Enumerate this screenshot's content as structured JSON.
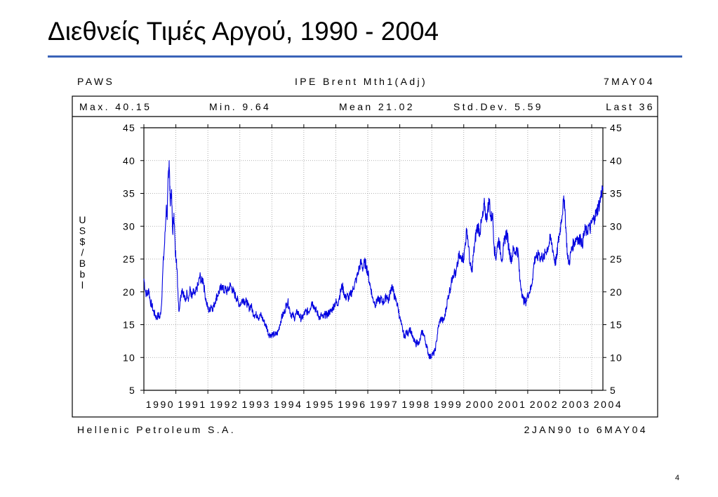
{
  "slide": {
    "title": "Διεθνείς Τιμές Αργού, 1990 - 2004",
    "page_number": "4"
  },
  "header": {
    "left": "PAWS",
    "center": "IPE Brent Mth1(Adj)",
    "right": "7MAY04"
  },
  "stats": {
    "max": "Max. 40.15",
    "min": "Min. 9.64",
    "mean": "Mean 21.02",
    "std": "Std.Dev. 5.59",
    "last": "Last 36"
  },
  "footer": {
    "left": "Hellenic Petroleum S.A.",
    "right": "2JAN90 to 6MAY04"
  },
  "colors": {
    "line": "#0000e0",
    "rule": "#3a63b8",
    "grid": "#999999"
  },
  "chart_data": {
    "type": "line",
    "title": "IPE Brent Mth1(Adj)",
    "ylabel": "US$/Bbl",
    "xlabel": "",
    "ylim": [
      5,
      45
    ],
    "xlim": [
      1990.0,
      2004.35
    ],
    "yticks": [
      5,
      10,
      15,
      20,
      25,
      30,
      35,
      40,
      45
    ],
    "xticks": [
      "1990",
      "1991",
      "1992",
      "1993",
      "1994",
      "1995",
      "1996",
      "1997",
      "1998",
      "1999",
      "2000",
      "2001",
      "2002",
      "2003",
      "2004"
    ],
    "grid": true,
    "series": [
      {
        "values": [
          [
            1990.0,
            22.0
          ],
          [
            1990.05,
            20.0
          ],
          [
            1990.1,
            19.5
          ],
          [
            1990.15,
            20.5
          ],
          [
            1990.2,
            18.5
          ],
          [
            1990.25,
            18.0
          ],
          [
            1990.3,
            17.0
          ],
          [
            1990.35,
            16.5
          ],
          [
            1990.4,
            16.0
          ],
          [
            1990.45,
            16.5
          ],
          [
            1990.5,
            16.0
          ],
          [
            1990.55,
            18.0
          ],
          [
            1990.6,
            24.0
          ],
          [
            1990.65,
            27.5
          ],
          [
            1990.7,
            33.0
          ],
          [
            1990.73,
            31.0
          ],
          [
            1990.76,
            38.0
          ],
          [
            1990.79,
            40.0
          ],
          [
            1990.82,
            34.0
          ],
          [
            1990.86,
            35.5
          ],
          [
            1990.9,
            29.0
          ],
          [
            1990.94,
            32.0
          ],
          [
            1990.98,
            26.0
          ],
          [
            1991.02,
            25.0
          ],
          [
            1991.06,
            20.5
          ],
          [
            1991.1,
            17.0
          ],
          [
            1991.15,
            19.5
          ],
          [
            1991.2,
            20.5
          ],
          [
            1991.25,
            19.5
          ],
          [
            1991.3,
            18.5
          ],
          [
            1991.35,
            20.0
          ],
          [
            1991.4,
            19.0
          ],
          [
            1991.45,
            20.5
          ],
          [
            1991.5,
            19.0
          ],
          [
            1991.55,
            20.0
          ],
          [
            1991.6,
            19.5
          ],
          [
            1991.65,
            20.5
          ],
          [
            1991.7,
            21.0
          ],
          [
            1991.75,
            22.5
          ],
          [
            1991.8,
            21.5
          ],
          [
            1991.85,
            22.0
          ],
          [
            1991.9,
            20.0
          ],
          [
            1991.95,
            18.5
          ],
          [
            1992.0,
            17.5
          ],
          [
            1992.05,
            17.0
          ],
          [
            1992.1,
            18.0
          ],
          [
            1992.15,
            17.5
          ],
          [
            1992.2,
            18.0
          ],
          [
            1992.25,
            19.0
          ],
          [
            1992.3,
            19.5
          ],
          [
            1992.35,
            20.0
          ],
          [
            1992.4,
            20.5
          ],
          [
            1992.45,
            21.0
          ],
          [
            1992.5,
            20.0
          ],
          [
            1992.55,
            20.5
          ],
          [
            1992.6,
            20.0
          ],
          [
            1992.65,
            20.5
          ],
          [
            1992.7,
            21.0
          ],
          [
            1992.75,
            20.5
          ],
          [
            1992.8,
            20.0
          ],
          [
            1992.85,
            19.5
          ],
          [
            1992.9,
            19.0
          ],
          [
            1992.95,
            18.5
          ],
          [
            1993.0,
            18.0
          ],
          [
            1993.05,
            18.5
          ],
          [
            1993.1,
            19.0
          ],
          [
            1993.15,
            18.5
          ],
          [
            1993.2,
            18.5
          ],
          [
            1993.25,
            18.0
          ],
          [
            1993.3,
            17.5
          ],
          [
            1993.35,
            18.0
          ],
          [
            1993.4,
            17.0
          ],
          [
            1993.45,
            16.5
          ],
          [
            1993.5,
            16.5
          ],
          [
            1993.55,
            16.5
          ],
          [
            1993.6,
            16.0
          ],
          [
            1993.65,
            16.5
          ],
          [
            1993.7,
            16.0
          ],
          [
            1993.75,
            15.5
          ],
          [
            1993.8,
            15.0
          ],
          [
            1993.85,
            14.5
          ],
          [
            1993.9,
            13.5
          ],
          [
            1993.95,
            13.5
          ],
          [
            1994.0,
            13.5
          ],
          [
            1994.05,
            13.5
          ],
          [
            1994.1,
            13.5
          ],
          [
            1994.15,
            13.5
          ],
          [
            1994.2,
            14.0
          ],
          [
            1994.25,
            15.0
          ],
          [
            1994.3,
            16.0
          ],
          [
            1994.35,
            16.5
          ],
          [
            1994.4,
            17.0
          ],
          [
            1994.45,
            18.0
          ],
          [
            1994.5,
            18.5
          ],
          [
            1994.55,
            17.5
          ],
          [
            1994.6,
            16.5
          ],
          [
            1994.65,
            16.5
          ],
          [
            1994.7,
            16.0
          ],
          [
            1994.75,
            16.5
          ],
          [
            1994.8,
            17.0
          ],
          [
            1994.85,
            16.5
          ],
          [
            1994.9,
            16.0
          ],
          [
            1994.95,
            16.0
          ],
          [
            1995.0,
            16.5
          ],
          [
            1995.05,
            17.0
          ],
          [
            1995.1,
            17.0
          ],
          [
            1995.15,
            17.0
          ],
          [
            1995.2,
            17.5
          ],
          [
            1995.25,
            18.5
          ],
          [
            1995.3,
            18.0
          ],
          [
            1995.35,
            17.5
          ],
          [
            1995.4,
            17.0
          ],
          [
            1995.45,
            16.5
          ],
          [
            1995.5,
            16.0
          ],
          [
            1995.55,
            16.5
          ],
          [
            1995.6,
            16.0
          ],
          [
            1995.65,
            16.5
          ],
          [
            1995.7,
            16.5
          ],
          [
            1995.75,
            16.5
          ],
          [
            1995.8,
            17.0
          ],
          [
            1995.85,
            17.0
          ],
          [
            1995.9,
            17.5
          ],
          [
            1995.95,
            18.0
          ],
          [
            1996.0,
            18.5
          ],
          [
            1996.05,
            18.0
          ],
          [
            1996.1,
            19.0
          ],
          [
            1996.15,
            20.0
          ],
          [
            1996.2,
            21.0
          ],
          [
            1996.25,
            20.0
          ],
          [
            1996.3,
            19.0
          ],
          [
            1996.35,
            19.5
          ],
          [
            1996.4,
            19.0
          ],
          [
            1996.45,
            19.5
          ],
          [
            1996.5,
            20.0
          ],
          [
            1996.55,
            20.5
          ],
          [
            1996.6,
            21.5
          ],
          [
            1996.65,
            22.0
          ],
          [
            1996.7,
            23.0
          ],
          [
            1996.75,
            24.0
          ],
          [
            1996.8,
            24.5
          ],
          [
            1996.85,
            23.5
          ],
          [
            1996.9,
            24.5
          ],
          [
            1996.95,
            24.0
          ],
          [
            1997.0,
            23.0
          ],
          [
            1997.05,
            21.5
          ],
          [
            1997.1,
            20.5
          ],
          [
            1997.15,
            19.0
          ],
          [
            1997.2,
            18.5
          ],
          [
            1997.25,
            18.0
          ],
          [
            1997.3,
            19.0
          ],
          [
            1997.35,
            18.5
          ],
          [
            1997.4,
            19.0
          ],
          [
            1997.45,
            18.5
          ],
          [
            1997.5,
            18.5
          ],
          [
            1997.55,
            19.0
          ],
          [
            1997.6,
            19.5
          ],
          [
            1997.65,
            18.5
          ],
          [
            1997.7,
            20.0
          ],
          [
            1997.75,
            21.0
          ],
          [
            1997.8,
            20.0
          ],
          [
            1997.85,
            19.0
          ],
          [
            1997.9,
            18.5
          ],
          [
            1997.95,
            17.5
          ],
          [
            1998.0,
            16.0
          ],
          [
            1998.05,
            15.0
          ],
          [
            1998.1,
            14.0
          ],
          [
            1998.15,
            13.0
          ],
          [
            1998.2,
            14.0
          ],
          [
            1998.25,
            13.5
          ],
          [
            1998.3,
            14.5
          ],
          [
            1998.35,
            14.0
          ],
          [
            1998.4,
            13.0
          ],
          [
            1998.45,
            12.5
          ],
          [
            1998.5,
            12.0
          ],
          [
            1998.55,
            12.5
          ],
          [
            1998.6,
            12.0
          ],
          [
            1998.65,
            13.0
          ],
          [
            1998.7,
            14.0
          ],
          [
            1998.75,
            13.5
          ],
          [
            1998.8,
            12.5
          ],
          [
            1998.85,
            11.5
          ],
          [
            1998.9,
            10.5
          ],
          [
            1998.95,
            10.0
          ],
          [
            1999.0,
            10.5
          ],
          [
            1999.05,
            10.5
          ],
          [
            1999.1,
            11.0
          ],
          [
            1999.15,
            12.5
          ],
          [
            1999.2,
            14.5
          ],
          [
            1999.25,
            15.5
          ],
          [
            1999.3,
            16.0
          ],
          [
            1999.35,
            15.5
          ],
          [
            1999.4,
            16.0
          ],
          [
            1999.45,
            17.5
          ],
          [
            1999.5,
            19.0
          ],
          [
            1999.55,
            20.0
          ],
          [
            1999.6,
            21.0
          ],
          [
            1999.65,
            22.5
          ],
          [
            1999.7,
            23.0
          ],
          [
            1999.75,
            22.5
          ],
          [
            1999.8,
            24.0
          ],
          [
            1999.85,
            25.5
          ],
          [
            1999.9,
            25.0
          ],
          [
            1999.95,
            25.5
          ],
          [
            2000.0,
            25.0
          ],
          [
            2000.05,
            27.5
          ],
          [
            2000.1,
            29.5
          ],
          [
            2000.15,
            27.0
          ],
          [
            2000.2,
            24.0
          ],
          [
            2000.25,
            23.0
          ],
          [
            2000.3,
            25.5
          ],
          [
            2000.35,
            27.5
          ],
          [
            2000.4,
            29.5
          ],
          [
            2000.45,
            30.0
          ],
          [
            2000.5,
            29.0
          ],
          [
            2000.55,
            30.5
          ],
          [
            2000.6,
            31.5
          ],
          [
            2000.65,
            33.5
          ],
          [
            2000.7,
            31.0
          ],
          [
            2000.75,
            32.5
          ],
          [
            2000.8,
            34.0
          ],
          [
            2000.85,
            31.0
          ],
          [
            2000.9,
            32.0
          ],
          [
            2000.95,
            27.0
          ],
          [
            2001.0,
            25.0
          ],
          [
            2001.05,
            27.0
          ],
          [
            2001.1,
            28.0
          ],
          [
            2001.15,
            26.0
          ],
          [
            2001.2,
            25.0
          ],
          [
            2001.25,
            27.0
          ],
          [
            2001.3,
            28.5
          ],
          [
            2001.35,
            29.0
          ],
          [
            2001.4,
            27.0
          ],
          [
            2001.45,
            25.5
          ],
          [
            2001.5,
            25.0
          ],
          [
            2001.55,
            26.5
          ],
          [
            2001.6,
            26.0
          ],
          [
            2001.65,
            26.5
          ],
          [
            2001.7,
            26.0
          ],
          [
            2001.75,
            22.0
          ],
          [
            2001.8,
            20.5
          ],
          [
            2001.85,
            19.0
          ],
          [
            2001.9,
            18.5
          ],
          [
            2001.95,
            18.5
          ],
          [
            2002.0,
            19.5
          ],
          [
            2002.05,
            20.0
          ],
          [
            2002.1,
            20.5
          ],
          [
            2002.15,
            22.0
          ],
          [
            2002.2,
            24.5
          ],
          [
            2002.25,
            25.5
          ],
          [
            2002.3,
            25.0
          ],
          [
            2002.35,
            26.0
          ],
          [
            2002.4,
            25.0
          ],
          [
            2002.45,
            25.5
          ],
          [
            2002.5,
            25.0
          ],
          [
            2002.55,
            26.0
          ],
          [
            2002.6,
            26.5
          ],
          [
            2002.65,
            27.0
          ],
          [
            2002.7,
            28.0
          ],
          [
            2002.75,
            27.5
          ],
          [
            2002.8,
            26.0
          ],
          [
            2002.85,
            24.5
          ],
          [
            2002.9,
            25.0
          ],
          [
            2002.95,
            27.5
          ],
          [
            2003.0,
            29.0
          ],
          [
            2003.05,
            31.0
          ],
          [
            2003.1,
            33.0
          ],
          [
            2003.15,
            34.0
          ],
          [
            2003.2,
            29.0
          ],
          [
            2003.25,
            25.0
          ],
          [
            2003.3,
            24.5
          ],
          [
            2003.35,
            26.0
          ],
          [
            2003.4,
            27.0
          ],
          [
            2003.45,
            27.5
          ],
          [
            2003.5,
            28.0
          ],
          [
            2003.55,
            28.5
          ],
          [
            2003.6,
            27.5
          ],
          [
            2003.65,
            28.5
          ],
          [
            2003.7,
            27.0
          ],
          [
            2003.75,
            28.5
          ],
          [
            2003.8,
            29.5
          ],
          [
            2003.85,
            29.0
          ],
          [
            2003.9,
            30.0
          ],
          [
            2003.95,
            29.5
          ],
          [
            2004.0,
            30.5
          ],
          [
            2004.05,
            31.0
          ],
          [
            2004.1,
            31.5
          ],
          [
            2004.15,
            32.0
          ],
          [
            2004.2,
            33.0
          ],
          [
            2004.25,
            33.5
          ],
          [
            2004.3,
            35.0
          ],
          [
            2004.35,
            36.0
          ]
        ]
      }
    ]
  }
}
